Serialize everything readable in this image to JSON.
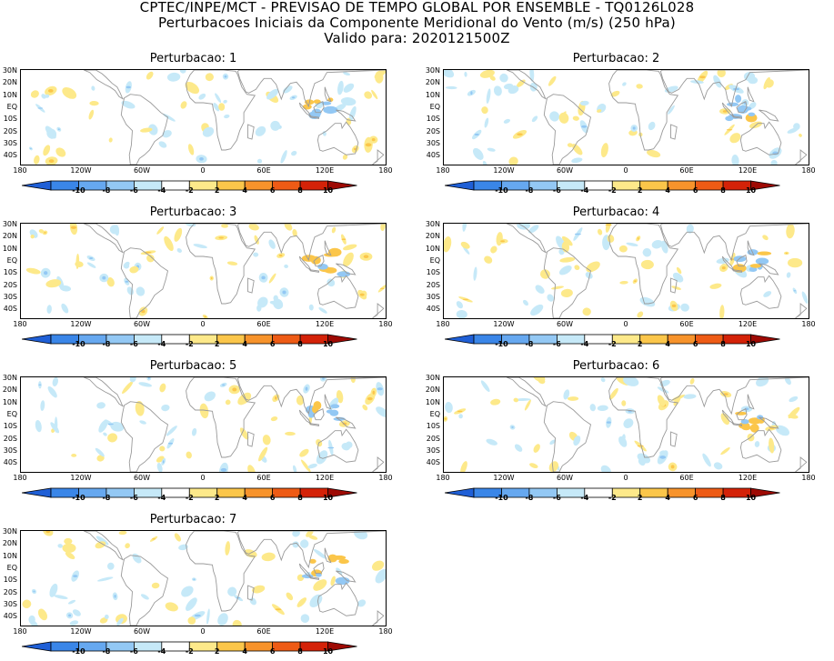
{
  "header": {
    "line1": "CPTEC/INPE/MCT - PREVISAO DE TEMPO GLOBAL POR ENSEMBLE - TQ0126L028",
    "line2": "Perturbacoes Iniciais da Componente Meridional do Vento (m/s) (250 hPa)",
    "line3": "Valido para: 2020121500Z"
  },
  "panels": [
    {
      "title": "Perturbacao: 1"
    },
    {
      "title": "Perturbacao: 2"
    },
    {
      "title": "Perturbacao: 3"
    },
    {
      "title": "Perturbacao: 4"
    },
    {
      "title": "Perturbacao: 5"
    },
    {
      "title": "Perturbacao: 6"
    },
    {
      "title": "Perturbacao: 7"
    }
  ],
  "lat_labels": [
    "30N",
    "20N",
    "10N",
    "EQ",
    "10S",
    "20S",
    "30S",
    "40S"
  ],
  "lon_labels": [
    "180",
    "120W",
    "60W",
    "0",
    "60E",
    "120E",
    "180"
  ],
  "colorbar": {
    "tick_labels": [
      "-10",
      "-8",
      "-6",
      "-4",
      "-2",
      "2",
      "4",
      "6",
      "8",
      "10"
    ],
    "colors": [
      "#1f5fd6",
      "#3a86e8",
      "#66a8f0",
      "#93c8f4",
      "#c6e9f8",
      "#ffffff",
      "#fde98a",
      "#fbc64a",
      "#f7932b",
      "#ee5b15",
      "#d42208",
      "#9e0a04"
    ]
  }
}
